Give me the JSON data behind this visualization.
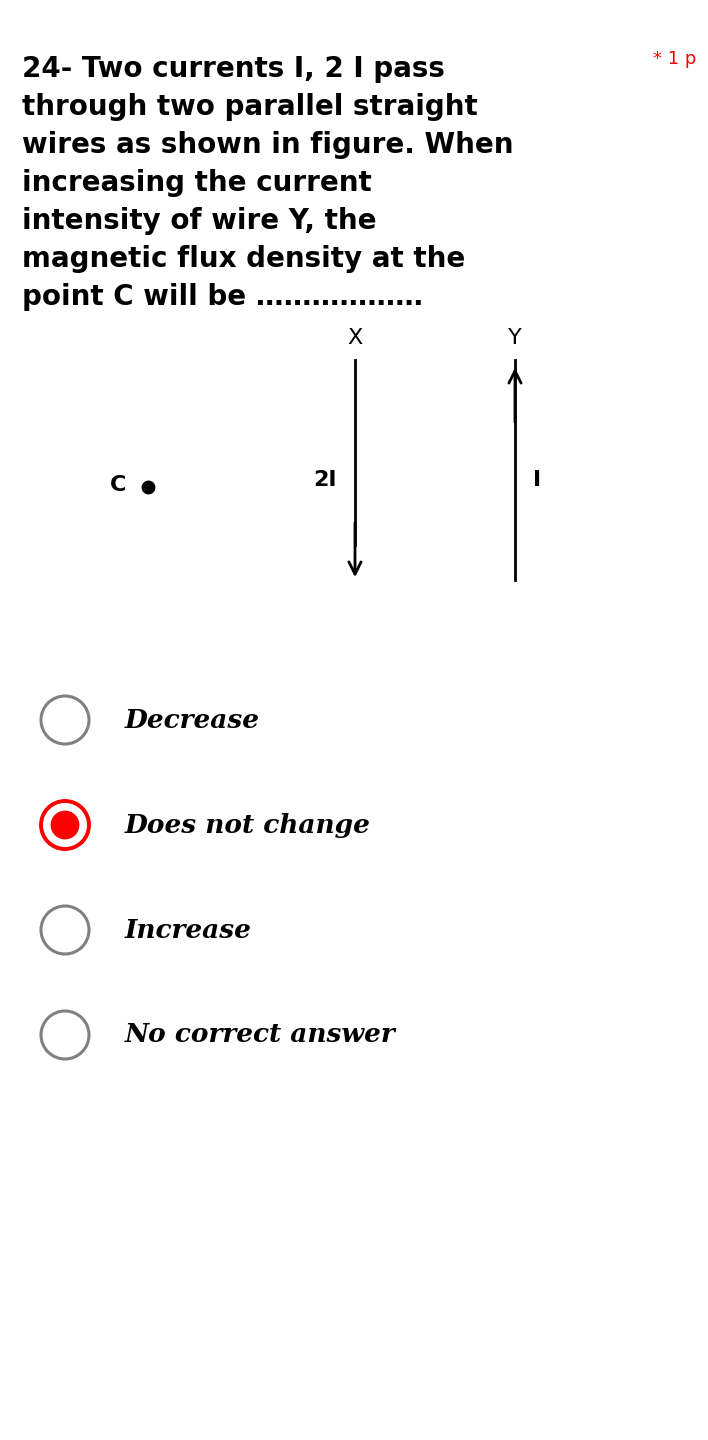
{
  "title_lines": [
    "24- Two currents I, 2 I pass",
    "through two parallel straight",
    "wires as shown in figure. When",
    "increasing the current",
    "intensity of wire Y, the",
    "magnetic flux density at the",
    "point C will be ………………"
  ],
  "star_label": "* 1 p",
  "wire_X_label": "X",
  "wire_Y_label": "Y",
  "current_X_label": "2I",
  "current_Y_label": "I",
  "point_C_label": "C",
  "options": [
    "Decrease",
    "Does not change",
    "Increase",
    "No correct answer"
  ],
  "selected_option": 1,
  "background_color": "#ffffff",
  "text_color": "#000000",
  "option_circle_color": "#808080",
  "selected_fill_color": "#ff0000",
  "fig_width": 7.08,
  "fig_height": 14.4
}
